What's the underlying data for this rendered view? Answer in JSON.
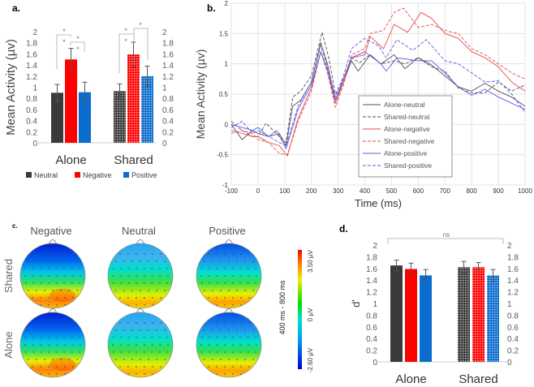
{
  "colors": {
    "neutral": "#3a3a3a",
    "negative": "#ff0000",
    "positive": "#0a6ccc",
    "err": "#555555",
    "line_neutral": "#505050",
    "line_negative": "#e84848",
    "line_positive": "#5a5ae8"
  },
  "chart_data": [
    {
      "panel": "a.",
      "type": "bar",
      "ylabel": "Mean Activity (µv)",
      "ylim": [
        0,
        2
      ],
      "yticks": [
        "0",
        "0.2",
        "0.4",
        "0.6",
        "0.8",
        "1",
        "1.2",
        "1.4",
        "1.6",
        "1.8",
        "2"
      ],
      "categories": [
        "Alone",
        "Shared"
      ],
      "series": [
        {
          "name": "Neutral",
          "values": [
            0.9,
            0.93
          ],
          "errors": [
            0.15,
            0.13
          ]
        },
        {
          "name": "Negative",
          "values": [
            1.5,
            1.59
          ],
          "errors": [
            0.2,
            0.22
          ]
        },
        {
          "name": "Positive",
          "values": [
            0.91,
            1.2
          ],
          "errors": [
            0.18,
            0.18
          ]
        }
      ],
      "significance": "*",
      "legend": [
        "Neutral",
        "Negative",
        "Positive"
      ]
    },
    {
      "panel": "b.",
      "type": "line",
      "xlabel": "Time (ms)",
      "ylabel": "Mean Activity (µv)",
      "xlim": [
        -100,
        1000
      ],
      "ylim": [
        -1,
        2
      ],
      "xticks": [
        "-100",
        "0",
        "100",
        "200",
        "300",
        "400",
        "500",
        "600",
        "700",
        "800",
        "900",
        "1000"
      ],
      "yticks": [
        "-1",
        "-0.5",
        "0",
        "0.5",
        "1",
        "1.5",
        "2"
      ],
      "grid": true,
      "legend_position": "bottom-center",
      "series": [
        {
          "name": "Alone-neutral",
          "x": [
            -100,
            -60,
            -20,
            0,
            40,
            80,
            105,
            130,
            160,
            200,
            235,
            260,
            290,
            320,
            350,
            375,
            420,
            460,
            510,
            550,
            600,
            650,
            700,
            750,
            800,
            850,
            900,
            950,
            1000
          ],
          "y": [
            0,
            -0.25,
            -0.1,
            -0.15,
            -0.2,
            -0.15,
            -0.35,
            0.3,
            0.4,
            0.7,
            1.35,
            1.0,
            0.4,
            0.7,
            1.05,
            0.88,
            1.15,
            1.0,
            1.15,
            0.92,
            1.1,
            0.98,
            0.8,
            0.62,
            0.55,
            0.68,
            0.55,
            0.45,
            0.3
          ]
        },
        {
          "name": "Shared-neutral",
          "x": [
            -100,
            -60,
            -20,
            0,
            30,
            80,
            105,
            130,
            160,
            200,
            240,
            265,
            290,
            320,
            350,
            380,
            420,
            460,
            510,
            550,
            600,
            650,
            700,
            750,
            800,
            850,
            900,
            950,
            1000
          ],
          "y": [
            0.05,
            -0.1,
            -0.2,
            -0.2,
            0.02,
            -0.2,
            -0.3,
            0.45,
            0.55,
            0.8,
            1.52,
            1.1,
            0.5,
            0.75,
            1.1,
            1.02,
            1.15,
            1.0,
            1.05,
            1.0,
            1.1,
            0.95,
            0.88,
            0.6,
            0.52,
            0.52,
            0.7,
            0.55,
            0.65
          ]
        },
        {
          "name": "Alone-negative",
          "x": [
            -100,
            -60,
            -20,
            0,
            40,
            80,
            110,
            150,
            200,
            235,
            260,
            290,
            320,
            350,
            400,
            420,
            470,
            510,
            560,
            610,
            650,
            700,
            750,
            800,
            850,
            900,
            950,
            1000
          ],
          "y": [
            -0.1,
            -0.15,
            -0.2,
            -0.2,
            -0.3,
            -0.35,
            -0.52,
            0.1,
            0.6,
            1.2,
            0.9,
            0.35,
            0.7,
            1.1,
            1.15,
            1.45,
            1.25,
            1.65,
            1.52,
            1.85,
            1.75,
            1.5,
            1.42,
            1.2,
            1.1,
            0.95,
            0.7,
            0.55
          ]
        },
        {
          "name": "Shared-negative",
          "x": [
            -100,
            -60,
            -20,
            0,
            40,
            80,
            110,
            150,
            200,
            235,
            260,
            290,
            320,
            350,
            400,
            420,
            470,
            510,
            545,
            600,
            650,
            700,
            750,
            800,
            850,
            900,
            950,
            1000
          ],
          "y": [
            -0.15,
            -0.1,
            -0.15,
            -0.25,
            -0.3,
            -0.48,
            -0.5,
            0.05,
            0.55,
            1.2,
            0.85,
            0.28,
            0.65,
            1.15,
            1.25,
            1.5,
            1.55,
            1.85,
            1.92,
            1.6,
            1.65,
            1.55,
            1.5,
            1.25,
            1.15,
            1.0,
            0.85,
            0.75
          ]
        },
        {
          "name": "Alone-positive",
          "x": [
            -100,
            -60,
            -20,
            0,
            40,
            70,
            105,
            150,
            200,
            235,
            260,
            290,
            320,
            350,
            400,
            460,
            480,
            520,
            600,
            650,
            700,
            750,
            800,
            850,
            900,
            950,
            1000
          ],
          "y": [
            0,
            -0.05,
            -0.1,
            -0.05,
            -0.2,
            -0.1,
            -0.4,
            0.25,
            0.65,
            1.2,
            0.9,
            0.4,
            0.75,
            1.1,
            1.2,
            1.0,
            0.88,
            1.1,
            1.05,
            1.05,
            0.85,
            0.62,
            0.48,
            0.58,
            0.45,
            0.35,
            0.25
          ]
        },
        {
          "name": "Shared-positive",
          "x": [
            -100,
            -60,
            -20,
            0,
            40,
            80,
            105,
            150,
            200,
            235,
            260,
            290,
            320,
            350,
            400,
            450,
            480,
            520,
            580,
            630,
            650,
            700,
            750,
            800,
            850,
            900,
            950,
            1000
          ],
          "y": [
            -0.05,
            0.05,
            -0.15,
            -0.1,
            -0.2,
            -0.3,
            -0.35,
            0.3,
            0.7,
            1.3,
            0.95,
            0.45,
            0.8,
            1.25,
            1.42,
            1.3,
            1.1,
            1.4,
            1.22,
            1.4,
            1.3,
            1.05,
            1.0,
            0.85,
            0.7,
            0.72,
            0.5,
            0.2
          ]
        }
      ]
    },
    {
      "panel": "c.",
      "type": "heatmap",
      "columns": [
        "Negative",
        "Neutral",
        "Positive"
      ],
      "rows": [
        "Shared",
        "Alone"
      ],
      "colorbar": {
        "label": "400 ms - 800 ms",
        "max": "3.50 µV",
        "mid": "0 µV",
        "min": "-2.60 µV"
      }
    },
    {
      "panel": "d.",
      "type": "bar",
      "ylabel": "d'",
      "ylim": [
        0,
        2
      ],
      "yticks": [
        "0",
        "0.2",
        "0.4",
        "0.6",
        "0.8",
        "1",
        "1.2",
        "1.4",
        "1.6",
        "1.8",
        "2"
      ],
      "categories": [
        "Alone",
        "Shared"
      ],
      "series": [
        {
          "name": "Neutral",
          "values": [
            1.65,
            1.62
          ],
          "errors": [
            0.09,
            0.1
          ]
        },
        {
          "name": "Negative",
          "values": [
            1.59,
            1.62
          ],
          "errors": [
            0.1,
            0.08
          ]
        },
        {
          "name": "Positive",
          "values": [
            1.48,
            1.48
          ],
          "errors": [
            0.1,
            0.1
          ]
        }
      ],
      "annotation": "ns"
    }
  ]
}
